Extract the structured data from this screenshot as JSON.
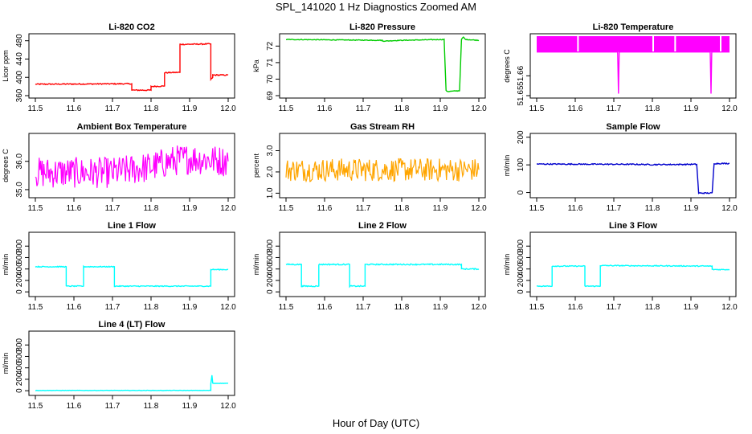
{
  "title": "SPL_141020 1 Hz Diagnostics Zoomed AM",
  "xlabel": "Hour of Day (UTC)",
  "chart_data": [
    {
      "type": "line",
      "title": "Li-820 CO2",
      "ylabel": "Licor ppm",
      "color": "#ff0000",
      "xlim": [
        11.5,
        12.0
      ],
      "ylim": [
        360,
        490
      ],
      "xticks": [
        "11.5",
        "11.6",
        "11.7",
        "11.8",
        "11.9",
        "12.0"
      ],
      "yticks": [
        "360",
        "400",
        "440",
        "480"
      ],
      "series": [
        {
          "x": [
            11.5,
            11.75,
            11.75,
            11.8,
            11.8,
            11.835,
            11.835,
            11.875,
            11.875,
            11.955,
            11.955,
            11.96,
            11.96,
            12.0
          ],
          "values": [
            385,
            386,
            372,
            372,
            380,
            381,
            410,
            411,
            472,
            473,
            395,
            400,
            405,
            405
          ]
        }
      ]
    },
    {
      "type": "line",
      "title": "Li-820 Pressure",
      "ylabel": "kPa",
      "color": "#00cc00",
      "xlim": [
        11.5,
        12.0
      ],
      "ylim": [
        69,
        72.6
      ],
      "xticks": [
        "11.5",
        "11.6",
        "11.7",
        "11.8",
        "11.9",
        "12.0"
      ],
      "yticks": [
        "69",
        "70",
        "71",
        "72"
      ],
      "series": [
        {
          "x": [
            11.5,
            11.75,
            11.75,
            11.8,
            11.91,
            11.915,
            11.92,
            11.95,
            11.955,
            11.96,
            11.965,
            12.0
          ],
          "values": [
            72.4,
            72.35,
            72.3,
            72.35,
            72.4,
            69.3,
            69.25,
            69.3,
            72.4,
            72.55,
            72.4,
            72.35
          ]
        }
      ]
    },
    {
      "type": "line",
      "title": "Li-820 Temperature",
      "ylabel": "degrees C",
      "color": "#ff00ff",
      "xlim": [
        11.5,
        12.0
      ],
      "ylim": [
        51.65,
        51.68
      ],
      "xticks": [
        "11.5",
        "11.6",
        "11.7",
        "11.8",
        "11.9",
        "12.0"
      ],
      "yticks": [
        "51.65",
        "51.66"
      ],
      "series": [
        {
          "x": [
            11.5,
            11.71,
            11.712,
            11.714,
            11.95,
            11.952,
            11.954,
            12.0
          ],
          "values": [
            51.672,
            51.672,
            51.651,
            51.672,
            51.672,
            51.651,
            51.672,
            51.672
          ]
        }
      ]
    },
    {
      "type": "line",
      "title": "Ambient Box Temperature",
      "ylabel": "degrees C",
      "color": "#ff00ff",
      "xlim": [
        11.5,
        12.0
      ],
      "ylim": [
        34.8,
        36.9
      ],
      "xticks": [
        "11.5",
        "11.6",
        "11.7",
        "11.8",
        "11.9",
        "12.0"
      ],
      "yticks": [
        "35.0",
        "36.0"
      ],
      "series": [
        {
          "x": [
            11.5,
            11.6,
            11.7,
            11.8,
            11.85,
            11.9,
            12.0
          ],
          "values": [
            35.6,
            35.6,
            35.6,
            35.8,
            36.0,
            36.1,
            36.0
          ]
        }
      ]
    },
    {
      "type": "line",
      "title": "Gas Stream RH",
      "ylabel": "percent",
      "color": "#ffa500",
      "xlim": [
        11.5,
        12.0
      ],
      "ylim": [
        0.9,
        3.7
      ],
      "xticks": [
        "11.5",
        "11.6",
        "11.7",
        "11.8",
        "11.9",
        "12.0"
      ],
      "yticks": [
        "1.0",
        "2.0",
        "3.0"
      ],
      "series": [
        {
          "x": [
            11.5,
            11.6,
            11.7,
            11.8,
            11.9,
            12.0
          ],
          "values": [
            2.1,
            2.1,
            2.1,
            2.1,
            2.1,
            2.1
          ]
        }
      ]
    },
    {
      "type": "line",
      "title": "Sample Flow",
      "ylabel": "ml/min",
      "color": "#0000cc",
      "xlim": [
        11.5,
        12.0
      ],
      "ylim": [
        -10,
        205
      ],
      "xticks": [
        "11.5",
        "11.6",
        "11.7",
        "11.8",
        "11.9",
        "12.0"
      ],
      "yticks": [
        "0",
        "100",
        "200"
      ],
      "series": [
        {
          "x": [
            11.5,
            11.75,
            11.8,
            11.915,
            11.92,
            11.955,
            11.96,
            12.0
          ],
          "values": [
            103,
            102,
            101,
            102,
            -2,
            -2,
            105,
            105
          ]
        }
      ]
    },
    {
      "type": "line",
      "title": "Line 1 Flow",
      "ylabel": "ml/min",
      "color": "#00ffff",
      "xlim": [
        11.5,
        12.0
      ],
      "ylim": [
        -40,
        1000
      ],
      "xticks": [
        "11.5",
        "11.6",
        "11.7",
        "11.8",
        "11.9",
        "12.0"
      ],
      "yticks": [
        "0",
        "200",
        "400",
        "600",
        "800"
      ],
      "series": [
        {
          "x": [
            11.5,
            11.58,
            11.58,
            11.625,
            11.625,
            11.705,
            11.705,
            11.955,
            11.955,
            12.0
          ],
          "values": [
            440,
            440,
            100,
            100,
            440,
            440,
            100,
            100,
            390,
            390
          ]
        }
      ]
    },
    {
      "type": "line",
      "title": "Line 2 Flow",
      "ylabel": "ml/min",
      "color": "#00ffff",
      "xlim": [
        11.5,
        12.0
      ],
      "ylim": [
        -40,
        1000
      ],
      "xticks": [
        "11.5",
        "11.6",
        "11.7",
        "11.8",
        "11.9",
        "12.0"
      ],
      "yticks": [
        "0",
        "200",
        "400",
        "600",
        "800"
      ],
      "series": [
        {
          "x": [
            11.5,
            11.54,
            11.54,
            11.585,
            11.585,
            11.665,
            11.665,
            11.705,
            11.705,
            11.955,
            11.955,
            12.0
          ],
          "values": [
            480,
            480,
            100,
            100,
            480,
            480,
            100,
            100,
            480,
            480,
            400,
            400
          ]
        }
      ]
    },
    {
      "type": "line",
      "title": "Line 3 Flow",
      "ylabel": "ml/min",
      "color": "#00ffff",
      "xlim": [
        11.5,
        12.0
      ],
      "ylim": [
        -40,
        1000
      ],
      "xticks": [
        "11.5",
        "11.6",
        "11.7",
        "11.8",
        "11.9",
        "12.0"
      ],
      "yticks": [
        "0",
        "200",
        "400",
        "600",
        "800"
      ],
      "series": [
        {
          "x": [
            11.5,
            11.54,
            11.54,
            11.625,
            11.625,
            11.665,
            11.665,
            11.955,
            11.955,
            12.0
          ],
          "values": [
            100,
            100,
            450,
            450,
            100,
            100,
            460,
            450,
            390,
            390
          ]
        }
      ]
    },
    {
      "type": "line",
      "title": "Line 4 (LT) Flow",
      "ylabel": "ml/min",
      "color": "#00ffff",
      "xlim": [
        11.5,
        12.0
      ],
      "ylim": [
        -40,
        1000
      ],
      "xticks": [
        "11.5",
        "11.6",
        "11.7",
        "11.8",
        "11.9",
        "12.0"
      ],
      "yticks": [
        "0",
        "200",
        "400",
        "600",
        "800"
      ],
      "series": [
        {
          "x": [
            11.5,
            11.955,
            11.955,
            11.958,
            11.96,
            12.0
          ],
          "values": [
            5,
            5,
            120,
            270,
            130,
            130
          ]
        }
      ]
    }
  ]
}
